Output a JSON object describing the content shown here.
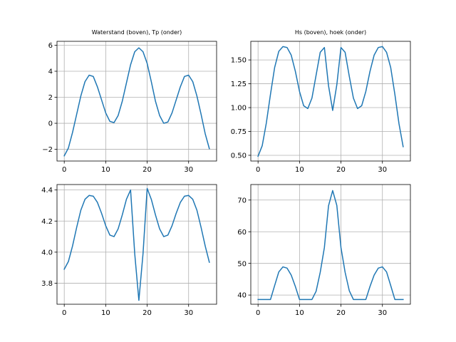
{
  "chart_data": [
    {
      "type": "line",
      "title": "Waterstand (boven), Tp (onder)",
      "xlabel": "",
      "ylabel": "",
      "xlim": [
        -1.75,
        36.75
      ],
      "ylim": [
        -2.9,
        6.3
      ],
      "xticks": [
        0,
        10,
        20,
        30
      ],
      "yticks": [
        -2,
        0,
        2,
        4,
        6
      ],
      "ytick_labels": [
        "−2",
        "0",
        "2",
        "4",
        "6"
      ],
      "grid": true,
      "color": "#1f77b4",
      "series": [
        {
          "x": [
            0,
            1,
            2,
            3,
            4,
            5,
            6,
            7,
            8,
            9,
            10,
            11,
            12,
            13,
            14,
            15,
            16,
            17,
            18,
            19,
            20,
            21,
            22,
            23,
            24,
            25,
            26,
            27,
            28,
            29,
            30,
            31,
            32,
            33,
            34,
            35
          ],
          "y": [
            -2.5,
            -1.9,
            -0.7,
            0.7,
            2.1,
            3.2,
            3.7,
            3.6,
            2.8,
            1.8,
            0.8,
            0.15,
            0.05,
            0.6,
            1.7,
            3.1,
            4.5,
            5.5,
            5.8,
            5.5,
            4.6,
            3.2,
            1.7,
            0.6,
            0.0,
            0.1,
            0.8,
            1.8,
            2.8,
            3.6,
            3.7,
            3.2,
            2.1,
            0.7,
            -0.8,
            -1.95
          ]
        }
      ]
    },
    {
      "type": "line",
      "title": "Hs (boven), hoek (onder)",
      "xlabel": "",
      "ylabel": "",
      "xlim": [
        -1.75,
        36.75
      ],
      "ylim": [
        0.44,
        1.695
      ],
      "xticks": [
        0,
        10,
        20,
        30
      ],
      "yticks": [
        0.5,
        0.75,
        1.0,
        1.25,
        1.5
      ],
      "ytick_labels": [
        "0.50",
        "0.75",
        "1.00",
        "1.25",
        "1.50"
      ],
      "grid": true,
      "color": "#1f77b4",
      "series": [
        {
          "x": [
            0,
            1,
            2,
            3,
            4,
            5,
            6,
            7,
            8,
            9,
            10,
            11,
            12,
            13,
            14,
            15,
            16,
            17,
            18,
            19,
            20,
            21,
            22,
            23,
            24,
            25,
            26,
            27,
            28,
            29,
            30,
            31,
            32,
            33,
            34,
            35
          ],
          "y": [
            0.49,
            0.6,
            0.84,
            1.14,
            1.42,
            1.59,
            1.64,
            1.63,
            1.55,
            1.38,
            1.17,
            1.02,
            0.99,
            1.1,
            1.34,
            1.58,
            1.63,
            1.23,
            0.97,
            1.24,
            1.63,
            1.58,
            1.33,
            1.1,
            0.99,
            1.02,
            1.17,
            1.38,
            1.55,
            1.63,
            1.64,
            1.58,
            1.42,
            1.14,
            0.83,
            0.59
          ]
        }
      ]
    },
    {
      "type": "line",
      "title": "",
      "xlabel": "",
      "ylabel": "",
      "xlim": [
        -1.75,
        36.75
      ],
      "ylim": [
        3.665,
        4.435
      ],
      "xticks": [
        0,
        10,
        20,
        30
      ],
      "yticks": [
        3.8,
        4.0,
        4.2,
        4.4
      ],
      "ytick_labels": [
        "3.8",
        "4.0",
        "4.2",
        "4.4"
      ],
      "grid": true,
      "color": "#1f77b4",
      "series": [
        {
          "x": [
            0,
            1,
            2,
            3,
            4,
            5,
            6,
            7,
            8,
            9,
            10,
            11,
            12,
            13,
            14,
            15,
            16,
            17,
            18,
            19,
            20,
            21,
            22,
            23,
            24,
            25,
            26,
            27,
            28,
            29,
            30,
            31,
            32,
            33,
            34,
            35
          ],
          "y": [
            3.89,
            3.94,
            4.04,
            4.16,
            4.27,
            4.34,
            4.365,
            4.36,
            4.32,
            4.25,
            4.17,
            4.11,
            4.1,
            4.15,
            4.24,
            4.34,
            4.4,
            3.99,
            3.69,
            3.99,
            4.41,
            4.34,
            4.24,
            4.15,
            4.1,
            4.11,
            4.17,
            4.25,
            4.32,
            4.36,
            4.365,
            4.34,
            4.27,
            4.16,
            4.04,
            3.935
          ]
        }
      ]
    },
    {
      "type": "line",
      "title": "",
      "xlabel": "",
      "ylabel": "",
      "xlim": [
        -1.75,
        36.75
      ],
      "ylim": [
        37.1,
        74.9
      ],
      "xticks": [
        0,
        10,
        20,
        30
      ],
      "yticks": [
        40,
        50,
        60,
        70
      ],
      "ytick_labels": [
        "40",
        "50",
        "60",
        "70"
      ],
      "grid": true,
      "color": "#1f77b4",
      "series": [
        {
          "x": [
            0,
            1,
            2,
            3,
            4,
            5,
            6,
            7,
            8,
            9,
            10,
            11,
            12,
            13,
            14,
            15,
            16,
            17,
            18,
            19,
            20,
            21,
            22,
            23,
            24,
            25,
            26,
            27,
            28,
            29,
            30,
            31,
            32,
            33,
            34,
            35
          ],
          "y": [
            38.6,
            38.6,
            38.6,
            38.6,
            43.0,
            47.3,
            48.9,
            48.5,
            46.3,
            42.7,
            38.6,
            38.6,
            38.6,
            38.6,
            41.2,
            47.2,
            55.0,
            68.2,
            73.0,
            68.3,
            55.0,
            47.2,
            41.4,
            38.6,
            38.6,
            38.6,
            38.6,
            42.7,
            46.3,
            48.5,
            48.9,
            47.3,
            43.0,
            38.6,
            38.6,
            38.6
          ]
        }
      ]
    }
  ]
}
